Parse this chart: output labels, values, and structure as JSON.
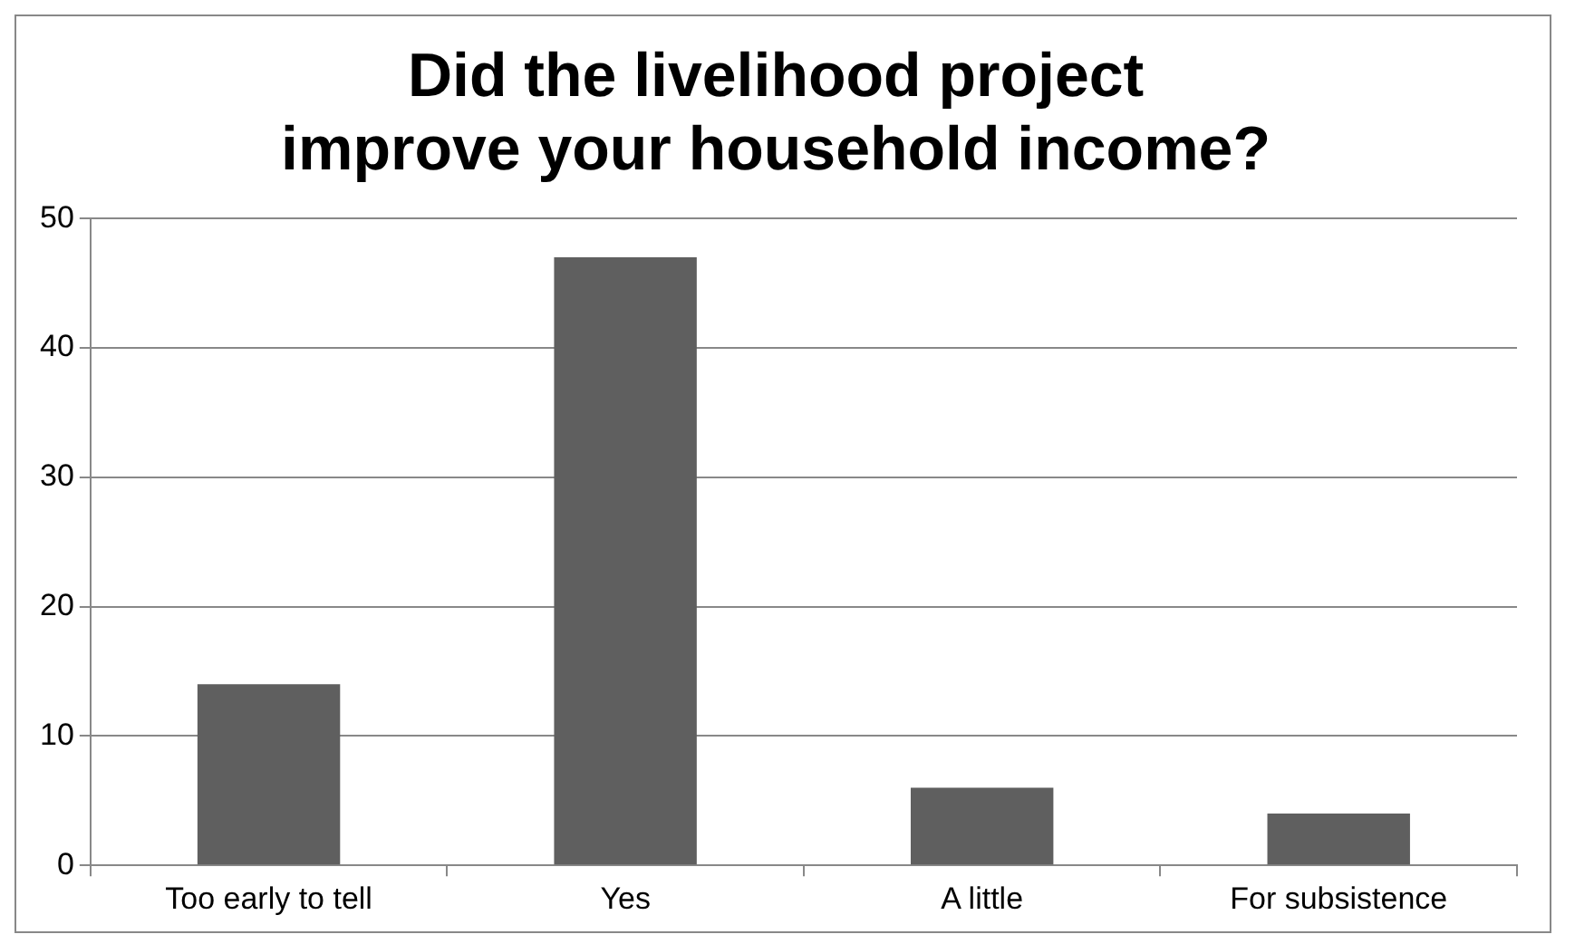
{
  "chart_data": {
    "type": "bar",
    "title": "Did the livelihood project\nimprove your household income?",
    "categories": [
      "Too early to tell",
      "Yes",
      "A little",
      "For subsistence"
    ],
    "values": [
      14,
      47,
      6,
      4
    ],
    "color": "#5f5f5f",
    "ylim": [
      0,
      50
    ],
    "yticks": [
      0,
      10,
      20,
      30,
      40,
      50
    ],
    "grid": "y",
    "legend": false
  }
}
